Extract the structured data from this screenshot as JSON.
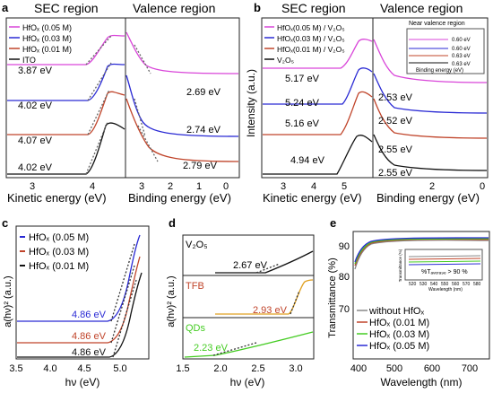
{
  "panels": {
    "a": {
      "label": "a",
      "sec_title": "SEC region",
      "val_title": "Valence region",
      "legend": [
        "HfOₓ (0.05 M)",
        "HfOₓ (0.03 M)",
        "HfOₓ (0.01 M)",
        "ITO"
      ],
      "sec_values": [
        "3.87 eV",
        "4.02 eV",
        "4.07 eV",
        "4.02 eV"
      ],
      "val_values": [
        "2.69 eV",
        "2.74 eV",
        "2.79 eV"
      ],
      "sec_xticks": [
        "3",
        "4"
      ],
      "val_xticks": [
        "3",
        "2",
        "1",
        "0"
      ],
      "sec_xlabel": "Kinetic energy (eV)",
      "val_xlabel": "Binding energy (eV)"
    },
    "b": {
      "label": "b",
      "sec_title": "SEC region",
      "val_title": "Valence region",
      "legend": [
        "HfOₓ(0.05 M) / V₂O₅",
        "HfOₓ(0.03 M) / V₂O₅",
        "HfOₓ(0.01 M) / V₂O₅",
        "V₂O₅"
      ],
      "sec_values": [
        "5.17 eV",
        "5.24 eV",
        "5.16 eV",
        "4.94 eV"
      ],
      "val_values": [
        "2.53 eV",
        "2.52 eV",
        "2.55 eV",
        "2.55 eV"
      ],
      "inset_title": "Near valence region",
      "inset_values": [
        "0.60 eV",
        "0.60 eV",
        "0.63 eV",
        "0.63 eV"
      ],
      "inset_xlabel": "Binding energy (eV)",
      "ylabel": "Intensity (a.u.)",
      "sec_xticks": [
        "3",
        "4",
        "5"
      ],
      "val_xticks": [
        "2",
        "0"
      ],
      "sec_xlabel": "Kinetic energy (eV)",
      "val_xlabel": "Binding energy (eV)"
    },
    "c": {
      "label": "c",
      "legend": [
        "HfOₓ (0.05 M)",
        "HfOₓ (0.03 M)",
        "HfOₓ (0.01 M)"
      ],
      "values": [
        "4.86 eV",
        "4.86 eV",
        "4.86 eV"
      ],
      "xticks": [
        "3.5",
        "4.0",
        "4.5",
        "5.0"
      ],
      "xlabel": "hν (eV)",
      "ylabel": "a(hν)² (a.u.)"
    },
    "d": {
      "label": "d",
      "layers": [
        "V₂O₅",
        "TFB",
        "QDs"
      ],
      "values": [
        "2.67 eV",
        "2.93 eV",
        "2.23 eV"
      ],
      "xticks": [
        "1.5",
        "2.0",
        "2.5",
        "3.0"
      ],
      "xlabel": "hν (eV)",
      "ylabel": "a(hν)² (a.u.)"
    },
    "e": {
      "label": "e",
      "yticks": [
        "70",
        "80",
        "90"
      ],
      "xticks": [
        "400",
        "500",
        "600",
        "700"
      ],
      "xlabel": "Wavelength (nm)",
      "ylabel": "Transmittance (%)",
      "legend": [
        "without HfOₓ",
        "HfOₓ (0.01 M)",
        "HfOₓ (0.03 M)",
        "HfOₓ (0.05 M)"
      ],
      "inset_note": "%Tₐᵥₑᵣₐ₉ₑ > 90 %",
      "inset_xticks": [
        "520",
        "530",
        "540",
        "550",
        "560",
        "570",
        "580"
      ],
      "inset_xlabel": "Wavelength (nm)",
      "inset_ylabel": "Transmittance (%)"
    }
  },
  "colors": {
    "magenta": "#d946d9",
    "blue": "#2a2ad4",
    "red": "#c0442a",
    "black": "#111111",
    "orange": "#e0a020",
    "green": "#44cc22",
    "gray": "#888888"
  }
}
